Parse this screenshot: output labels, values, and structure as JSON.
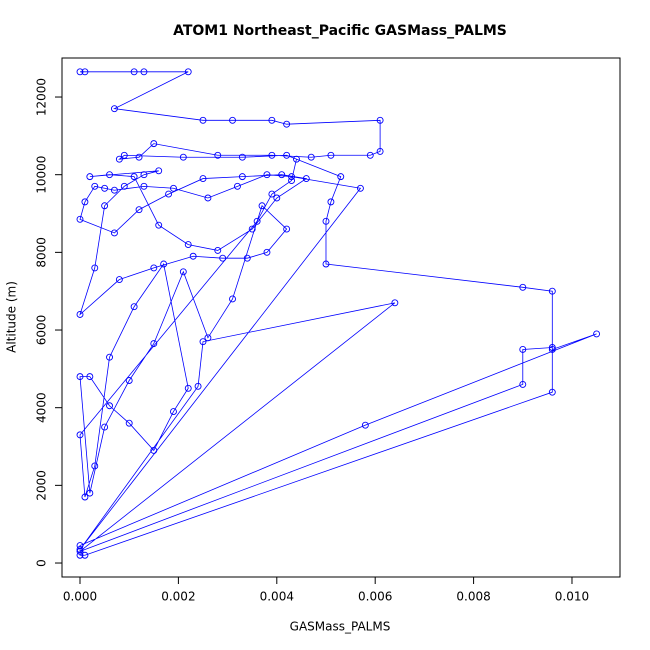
{
  "chart_data": {
    "type": "line",
    "title": "ATOM1 Northeast_Pacific GASMass_PALMS",
    "x_label": "GASMass_PALMS",
    "y_label": "Altitude (m)",
    "color": "#0000ff",
    "marker": "open-circle",
    "grid": false,
    "xlim": [
      -0.000366,
      0.010976
    ],
    "ylim": [
      -360,
      13005
    ],
    "xticks": [
      {
        "value": 0,
        "label": "0.000"
      },
      {
        "value": 0.002,
        "label": "0.002"
      },
      {
        "value": 0.004,
        "label": "0.004"
      },
      {
        "value": 0.006,
        "label": "0.006"
      },
      {
        "value": 0.008,
        "label": "0.008"
      },
      {
        "value": 0.01,
        "label": "0.010"
      }
    ],
    "yticks": [
      0,
      2000,
      4000,
      6000,
      8000,
      10000,
      12000
    ],
    "x": [
      0,
      0.0001,
      0.0011,
      0.0013,
      0.0022,
      0.0007,
      0.0025,
      0.0031,
      0.0039,
      0.0042,
      0.0061,
      0.0061,
      0.0059,
      0.0051,
      0.0047,
      0.0039,
      0.0028,
      0.0015,
      0.0012,
      0.0008,
      0.0009,
      0.0021,
      0.0033,
      0.0042,
      0.0053,
      0.0051,
      0.005,
      0.005,
      0.009,
      0.0096,
      0.0096,
      0.0105,
      0.0058,
      0,
      0,
      0.0001,
      0.0096,
      0.0096,
      0.009,
      0.009,
      0,
      0.0064,
      0.0025,
      0.0024,
      0,
      0.0057,
      0.0043,
      0.0038,
      0.0032,
      0.0026,
      0.0019,
      0.0013,
      0.0007,
      0.0005,
      0.0003,
      0.0001,
      0,
      0.0007,
      0.0012,
      0.0018,
      0.0025,
      0.0033,
      0.0041,
      0.0046,
      0.004,
      0.0035,
      0.0028,
      0.0022,
      0.0016,
      0.0011,
      0.0006,
      0.0002,
      0.0016,
      0.0013,
      0.0009,
      0.0005,
      0.0003,
      0,
      0.0008,
      0.0015,
      0.0023,
      0.0029,
      0.0034,
      0.0038,
      0.0042,
      0.0037,
      0.0031,
      0.0026,
      0.0021,
      0.0015,
      0.001,
      0.0005,
      0.0002,
      0,
      0.0002,
      0.0006,
      0.001,
      0.0015,
      0.0019,
      0.0022,
      0.0017,
      0.0011,
      0.0006,
      0.0003,
      0.0001,
      0,
      0.0036,
      0.0039,
      0.0043,
      0.0044
    ],
    "values": [
      12650,
      12650,
      12650,
      12650,
      12650,
      11700,
      11400,
      11400,
      11400,
      11300,
      11400,
      10600,
      10500,
      10500,
      10450,
      10500,
      10500,
      10800,
      10450,
      10400,
      10500,
      10450,
      10450,
      10500,
      9950,
      9300,
      8800,
      7700,
      7100,
      7000,
      5500,
      5900,
      3550,
      450,
      200,
      200,
      4400,
      5550,
      5500,
      4600,
      300,
      6700,
      5700,
      4550,
      350,
      9650,
      9950,
      10000,
      9700,
      9400,
      9650,
      9700,
      9600,
      9650,
      9700,
      9300,
      8850,
      8500,
      9100,
      9500,
      9900,
      9950,
      10000,
      9900,
      9400,
      8600,
      8050,
      8200,
      8700,
      9950,
      10000,
      9950,
      10100,
      10000,
      9700,
      9200,
      7600,
      6400,
      7300,
      7600,
      7900,
      7850,
      7850,
      8000,
      8600,
      9200,
      6800,
      5800,
      7500,
      5650,
      4700,
      3500,
      1800,
      4800,
      4800,
      4050,
      3600,
      2900,
      3900,
      4500,
      7700,
      6600,
      5300,
      2500,
      1700,
      3300,
      8800,
      9500,
      9850,
      10400
    ]
  }
}
